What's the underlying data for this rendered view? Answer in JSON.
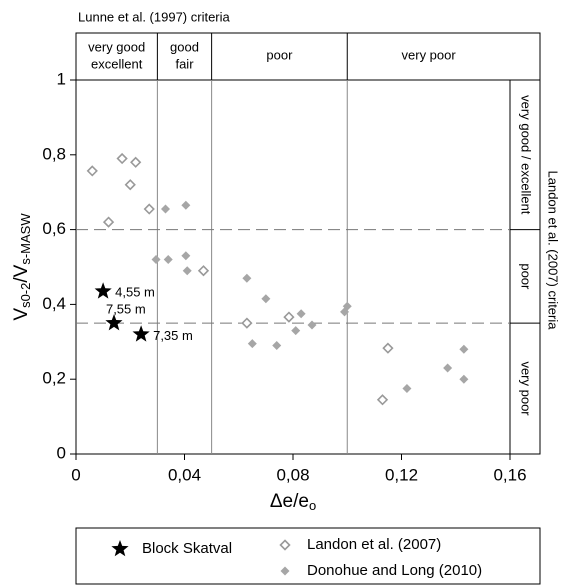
{
  "chart_data": {
    "type": "scatter",
    "x_label": [
      "Δe/e",
      "o"
    ],
    "y_label": [
      "V",
      "s0-2",
      "/V",
      "s-MASW"
    ],
    "xlim": [
      0,
      0.16
    ],
    "ylim": [
      0,
      1
    ],
    "xticks": [
      0,
      {
        "value": 0.04,
        "label": "0,04"
      },
      {
        "value": 0.08,
        "label": "0,08"
      },
      {
        "value": 0.12,
        "label": "0,12"
      },
      {
        "value": 0.16,
        "label": "0,16"
      }
    ],
    "yticks": [
      0,
      {
        "value": 0.2,
        "label": "0,2"
      },
      {
        "value": 0.4,
        "label": "0,4"
      },
      {
        "value": 0.6,
        "label": "0,6"
      },
      {
        "value": 0.8,
        "label": "0,8"
      },
      1
    ],
    "top_zones": {
      "title": "Lunne et al. (1997) criteria",
      "bounds": [
        0.03,
        0.05,
        0.1
      ],
      "labels": [
        [
          "very good",
          "excellent"
        ],
        [
          "good",
          "fair"
        ],
        [
          "poor"
        ],
        [
          "very poor"
        ]
      ]
    },
    "right_zones": {
      "title": "Landon et al. (2007) criteria",
      "bounds": [
        0.6,
        0.35
      ],
      "labels": [
        "very good / excellent",
        "poor",
        "very poor"
      ]
    },
    "series": [
      {
        "name": "Block Skatval",
        "marker": "star",
        "color": "#000000",
        "x": [
          0.01,
          0.014,
          0.024
        ],
        "values": [
          0.435,
          0.35,
          0.32
        ],
        "labels": [
          "4,55 m",
          "7,55 m",
          "7,35 m"
        ]
      },
      {
        "name": "Landon et al. (2007)",
        "marker": "diamond-open",
        "color": "#999999",
        "x": [
          0.006,
          0.017,
          0.022,
          0.012,
          0.02,
          0.027,
          0.047,
          0.063,
          0.0785,
          0.113,
          0.115
        ],
        "values": [
          0.757,
          0.79,
          0.78,
          0.62,
          0.72,
          0.655,
          0.49,
          0.35,
          0.366,
          0.145,
          0.283
        ]
      },
      {
        "name": "Donohue and Long (2010)",
        "marker": "diamond",
        "color": "#a6a6a6",
        "x": [
          0.0295,
          0.034,
          0.033,
          0.0405,
          0.0405,
          0.041,
          0.063,
          0.065,
          0.07,
          0.074,
          0.081,
          0.083,
          0.087,
          0.099,
          0.1,
          0.122,
          0.137,
          0.143,
          0.143
        ],
        "values": [
          0.52,
          0.52,
          0.655,
          0.665,
          0.53,
          0.49,
          0.47,
          0.295,
          0.415,
          0.29,
          0.33,
          0.375,
          0.345,
          0.38,
          0.395,
          0.175,
          0.23,
          0.28,
          0.2
        ]
      }
    ]
  }
}
